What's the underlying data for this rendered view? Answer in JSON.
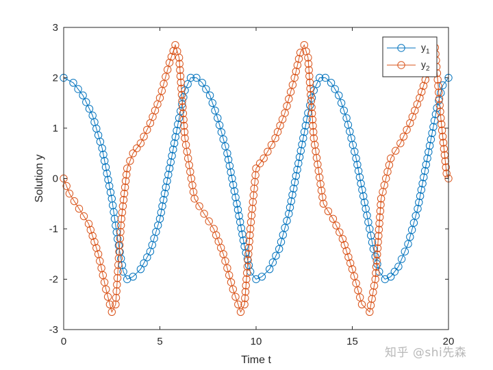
{
  "chart_data": {
    "type": "line",
    "xlabel": "Time t",
    "ylabel": "Solution y",
    "xlim": [
      0,
      20
    ],
    "ylim": [
      -3,
      3
    ],
    "x_ticks": [
      0,
      5,
      10,
      15,
      20
    ],
    "y_ticks": [
      -3,
      -2,
      -1,
      0,
      1,
      2,
      3
    ],
    "grid": false,
    "legend_location": "top-right",
    "marker": "open-circle",
    "colors": {
      "y1": "#0072BD",
      "y2": "#D95319"
    },
    "series": [
      {
        "name": "y1",
        "legend_base": "y",
        "legend_sub": "1",
        "x": [
          0.0,
          0.5,
          1.0,
          1.5,
          2.0,
          2.5,
          2.8,
          3.1,
          3.3,
          3.6,
          4.0,
          4.5,
          5.0,
          5.5,
          6.0,
          6.3,
          6.6,
          6.9,
          7.2,
          7.6,
          8.0,
          8.5,
          9.0,
          9.4,
          9.7,
          10.0,
          10.3,
          10.7,
          11.2,
          11.7,
          12.2,
          12.7,
          13.0,
          13.3,
          13.6,
          13.9,
          14.3,
          14.7,
          15.2,
          15.7,
          16.1,
          16.4,
          16.7,
          17.0,
          17.4,
          17.9,
          18.4,
          18.9,
          19.4,
          19.7,
          20.0
        ],
        "y": [
          2.0,
          1.9,
          1.65,
          1.25,
          0.6,
          -0.4,
          -1.2,
          -1.85,
          -2.0,
          -1.95,
          -1.8,
          -1.45,
          -0.8,
          0.2,
          1.2,
          1.75,
          2.0,
          2.0,
          1.9,
          1.65,
          1.2,
          0.5,
          -0.5,
          -1.35,
          -1.85,
          -2.0,
          -1.95,
          -1.8,
          -1.4,
          -0.7,
          0.3,
          1.3,
          1.75,
          2.0,
          2.0,
          1.9,
          1.65,
          1.2,
          0.4,
          -0.6,
          -1.4,
          -1.85,
          -2.0,
          -1.95,
          -1.75,
          -1.3,
          -0.6,
          0.4,
          1.4,
          1.85,
          2.0
        ]
      },
      {
        "name": "y2",
        "legend_base": "y",
        "legend_sub": "2",
        "x": [
          0.0,
          0.3,
          0.8,
          1.3,
          1.8,
          2.2,
          2.5,
          2.7,
          3.0,
          3.3,
          3.6,
          4.0,
          4.5,
          5.0,
          5.5,
          5.8,
          6.0,
          6.3,
          6.8,
          7.3,
          7.8,
          8.3,
          8.8,
          9.2,
          9.4,
          9.7,
          10.0,
          10.4,
          11.0,
          11.5,
          12.0,
          12.3,
          12.5,
          12.7,
          13.0,
          13.5,
          14.0,
          14.5,
          15.0,
          15.5,
          15.9,
          16.2,
          16.5,
          17.0,
          17.5,
          18.0,
          18.5,
          19.0,
          19.3,
          19.6,
          19.9,
          20.0
        ],
        "y": [
          0.0,
          -0.3,
          -0.6,
          -0.9,
          -1.5,
          -2.2,
          -2.65,
          -2.5,
          -0.8,
          0.2,
          0.5,
          0.7,
          1.1,
          1.6,
          2.3,
          2.65,
          2.4,
          0.8,
          -0.4,
          -0.7,
          -1.0,
          -1.5,
          -2.2,
          -2.65,
          -2.5,
          -1.0,
          0.2,
          0.4,
          0.8,
          1.3,
          2.0,
          2.5,
          2.65,
          2.4,
          0.8,
          -0.5,
          -0.8,
          -1.2,
          -1.8,
          -2.5,
          -2.65,
          -2.0,
          -0.4,
          0.4,
          0.7,
          1.1,
          1.6,
          2.2,
          2.6,
          1.2,
          0.1,
          0.0
        ]
      }
    ]
  },
  "watermark": {
    "text": "知乎 @shi先森"
  }
}
